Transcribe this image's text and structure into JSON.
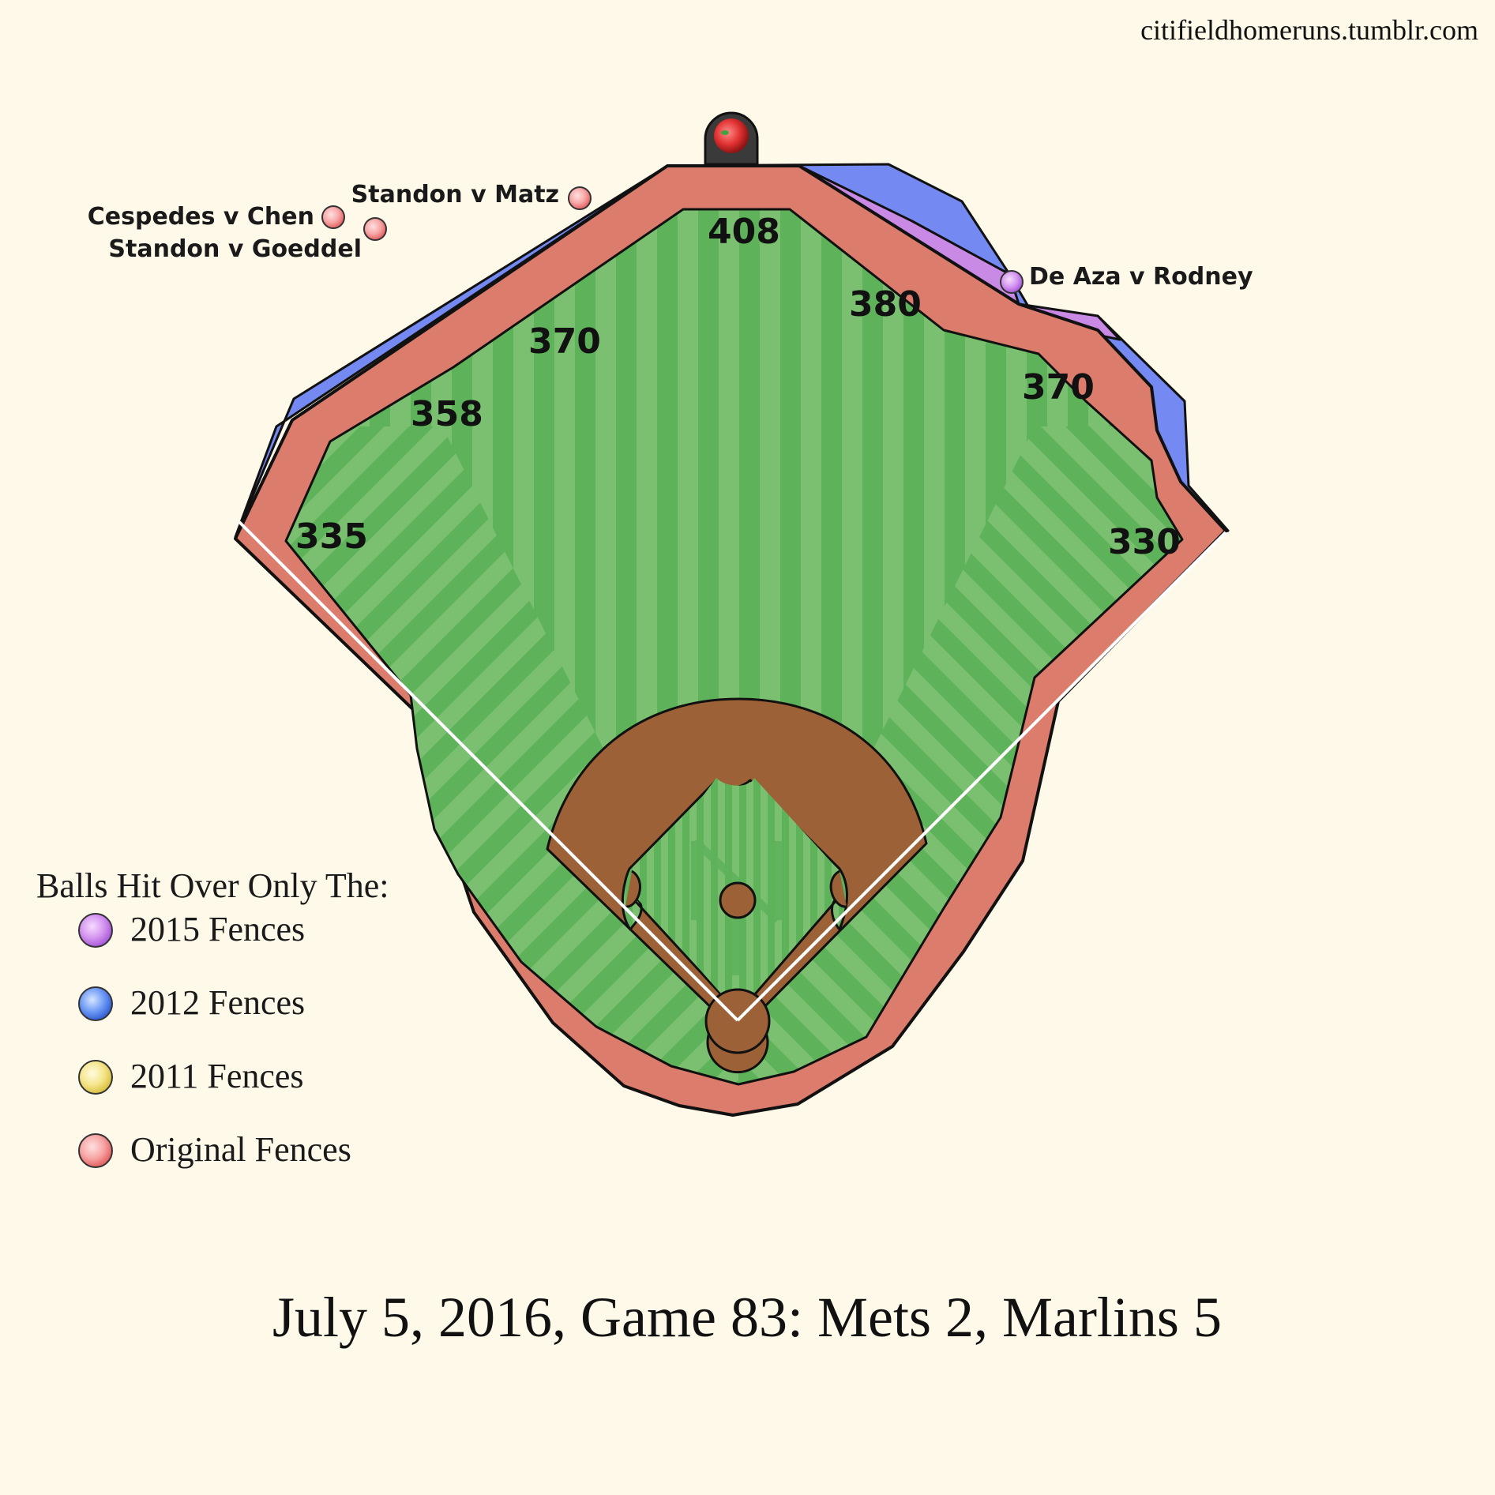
{
  "site_credit": "citifieldhomeruns.tumblr.com",
  "title": "July 5, 2016, Game 83: Mets 2, Marlins 5",
  "distances": {
    "lf_line": "335",
    "lf": "358",
    "lcf": "370",
    "cf": "408",
    "rcf": "380",
    "rf": "370",
    "rf_line": "330"
  },
  "home_runs": [
    {
      "label": "Cespedes v Chen",
      "fence": "Original Fences"
    },
    {
      "label": "Standon v Goeddel",
      "fence": "Original Fences"
    },
    {
      "label": "Standon v Matz",
      "fence": "Original Fences"
    },
    {
      "label": "De Aza v Rodney",
      "fence": "2015 Fences"
    }
  ],
  "legend": {
    "title": "Balls Hit Over Only The:",
    "items": [
      {
        "label": "2015 Fences",
        "color": "#c77ee8"
      },
      {
        "label": "2012 Fences",
        "color": "#4f7df0"
      },
      {
        "label": "2011 Fences",
        "color": "#f2e27a"
      },
      {
        "label": "Original Fences",
        "color": "#f07f7f"
      }
    ]
  },
  "colors": {
    "background": "#fef9e8",
    "field_dark": "#5db25a",
    "field_light": "#7bc071",
    "warning_track": "#dc7c6c",
    "fence_2012": "#7489f2",
    "fence_2015": "#c98ae6",
    "infield_dirt": "#9c6136"
  }
}
